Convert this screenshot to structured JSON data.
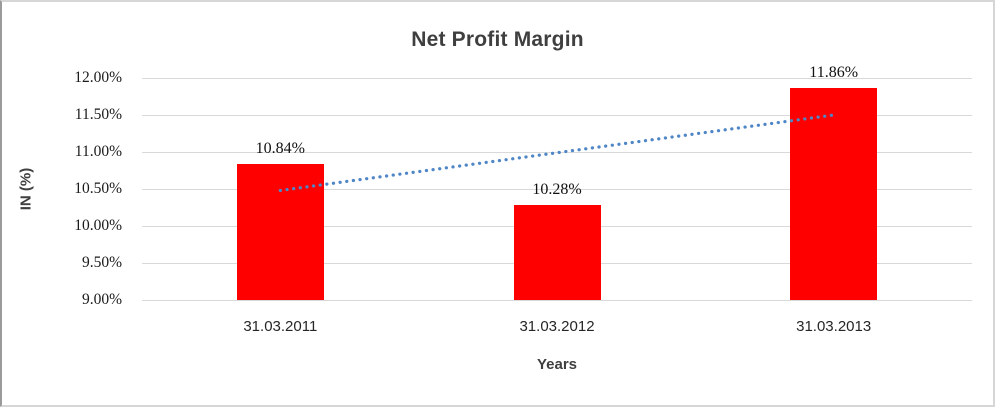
{
  "chart_data": {
    "type": "bar",
    "title": "Net Profit Margin",
    "categories": [
      "31.03.2011",
      "31.03.2012",
      "31.03.2013"
    ],
    "values": [
      10.84,
      10.28,
      11.86
    ],
    "data_labels": [
      "10.84%",
      "10.28%",
      "11.86%"
    ],
    "xlabel": "Years",
    "ylabel": "IN (%)",
    "ylim": [
      9.0,
      12.0
    ],
    "ytick_step": 0.5,
    "yticks": [
      9.0,
      9.5,
      10.0,
      10.5,
      11.0,
      11.5,
      12.0
    ],
    "ytick_labels": [
      "9.00%",
      "9.50%",
      "10.00%",
      "10.50%",
      "11.00%",
      "11.50%",
      "12.00%"
    ],
    "grid": true,
    "legend": "none",
    "bar_color": "#ff0000",
    "gridline_color": "#d9d9d9",
    "trendline": {
      "type": "linear",
      "style": "dotted",
      "color": "#4f86c6",
      "start_value": 10.48,
      "end_value": 11.5
    }
  }
}
